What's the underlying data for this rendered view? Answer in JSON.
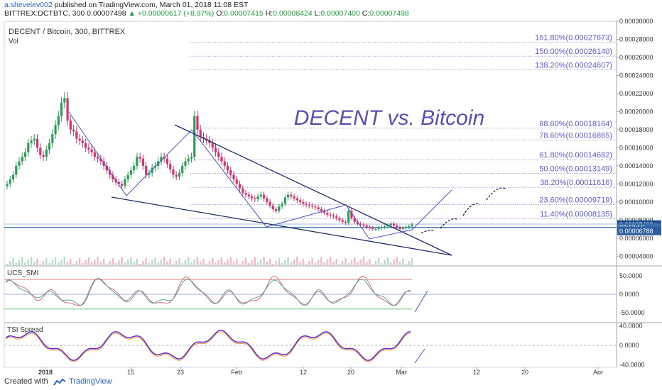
{
  "header": {
    "user": "a.shevelev002",
    "published": "published on TradingView.com, March 01, 2018 11:08 EST",
    "symbol": "BITTREX:DCTBTC, 300",
    "last": "0.00007498",
    "change": "+0.00000617 (+8.97%)",
    "o_label": "O:",
    "o": "0.00007415",
    "h_label": "H:",
    "h": "0.00008424",
    "l_label": "L:",
    "l": "0.00007400",
    "c_label": "C:",
    "c": "0.00007498"
  },
  "chart_title": "DECENT / Bitcoin, 300, BITTREX",
  "vol_label": "Vol",
  "banner": "DECENT vs. Bitcoin",
  "footer": {
    "created_with": "Created with",
    "brand": "TradingView"
  },
  "colors": {
    "up": "#2e9e57",
    "down": "#d6336c",
    "fib": "#5b5bd6",
    "line": "#1f2d63",
    "price_tag": "#1f4e8c",
    "time_tag": "#3b6ea8",
    "low_tag": "#2d5d9f"
  },
  "chart_data": [
    {
      "type": "candlestick",
      "title": "DECENT / Bitcoin, 300, BITTREX",
      "ylim": [
        3e-05,
        0.0003
      ],
      "y_ticks": [
        "0.00030000",
        "0.00028000",
        "0.00026000",
        "0.00024000",
        "0.00022000",
        "0.00020000",
        "0.00018000",
        "0.00016000",
        "0.00014000",
        "0.00012000",
        "0.00010000",
        "0.00008000",
        "0.00006000",
        "0.00004000"
      ],
      "x_ticks": [
        "2018",
        "15",
        "23",
        "Feb",
        "12",
        "20",
        "Mar",
        "12",
        "20",
        "Apr"
      ],
      "fib_levels": [
        {
          "label": "161.80%(0.00027673)",
          "value": 0.00027673
        },
        {
          "label": "150.00%(0.00026140)",
          "value": 0.0002614
        },
        {
          "label": "138.20%(0.00024607)",
          "value": 0.00024607
        },
        {
          "label": "88.60%(0.00018164)",
          "value": 0.00018164
        },
        {
          "label": "78.60%(0.00016865)",
          "value": 0.00016865
        },
        {
          "label": "61.80%(0.00014682)",
          "value": 0.00014682
        },
        {
          "label": "50.00%(0.00013149)",
          "value": 0.00013149
        },
        {
          "label": "38.20%(0.00011616)",
          "value": 0.00011616
        },
        {
          "label": "23.60%(0.00009719)",
          "value": 9.719e-05
        },
        {
          "label": "11.40%(0.00008135)",
          "value": 8.135e-05
        }
      ],
      "price_labels": [
        {
          "text": "0.00007498",
          "value": 7.498e-05
        },
        {
          "text": "03:52:16",
          "value": 7.18e-05
        },
        {
          "text": "0.00006788",
          "value": 6.788e-05
        }
      ],
      "close_series": [
        0.00012,
        0.000125,
        0.00013,
        0.00014,
        0.000145,
        0.00015,
        0.000155,
        0.000165,
        0.000168,
        0.00017,
        0.00016,
        0.000152,
        0.00015,
        0.000158,
        0.000165,
        0.000175,
        0.000185,
        0.000195,
        0.00021,
        0.000215,
        0.00019,
        0.00018,
        0.000178,
        0.00017,
        0.000168,
        0.000165,
        0.00016,
        0.000158,
        0.000155,
        0.00015,
        0.000148,
        0.000145,
        0.00014,
        0.000135,
        0.00013,
        0.000125,
        0.000122,
        0.00012,
        0.000118,
        0.000125,
        0.00013,
        0.000135,
        0.00014,
        0.00015,
        0.000148,
        0.00014,
        0.00013,
        0.000132,
        0.000138,
        0.00014,
        0.000145,
        0.00015,
        0.000148,
        0.000142,
        0.000136,
        0.00013,
        0.000128,
        0.000132,
        0.00014,
        0.000145,
        0.000148,
        0.00015,
        0.000195,
        0.00018,
        0.000172,
        0.00017,
        0.000168,
        0.000165,
        0.00016,
        0.000155,
        0.00015,
        0.000145,
        0.00014,
        0.000135,
        0.00013,
        0.000125,
        0.00012,
        0.000115,
        0.00011,
        0.000108,
        0.000106,
        0.000104,
        0.000103,
        0.000106,
        0.000108,
        0.000104,
        0.0001,
        9.6e-05,
        9.2e-05,
        9e-05,
        9.5e-05,
        9.8e-05,
        0.000105,
        0.000108,
        0.000106,
        0.000104,
        0.000102,
        0.0001,
        9.8e-05,
        9.7e-05,
        9.6e-05,
        9.5e-05,
        9.4e-05,
        9.2e-05,
        9e-05,
        8.8e-05,
        8.6e-05,
        8.5e-05,
        8.4e-05,
        8.2e-05,
        8e-05,
        7.8e-05,
        7.7e-05,
        9e-05,
        8.2e-05,
        7.8e-05,
        7.6e-05,
        7.5e-05,
        7.4e-05,
        7.2e-05,
        7.1e-05,
        7e-05,
        7e-05,
        7.1e-05,
        7.2e-05,
        7.3e-05,
        7.4e-05,
        7.6e-05,
        7.4e-05,
        7.2e-05,
        7e-05,
        7.1e-05,
        7.2e-05,
        7.3e-05,
        7.5e-05
      ]
    },
    {
      "type": "line",
      "title": "UCS_SMI",
      "ylim": [
        -75,
        75
      ],
      "y_ticks": [
        "50.0000",
        "0.0000",
        "-50.0000"
      ]
    },
    {
      "type": "line",
      "title": "TSI Spread",
      "ylim": [
        -45,
        45
      ],
      "y_ticks": [
        "40.0000",
        "0.0000",
        "-40.0000"
      ]
    }
  ]
}
